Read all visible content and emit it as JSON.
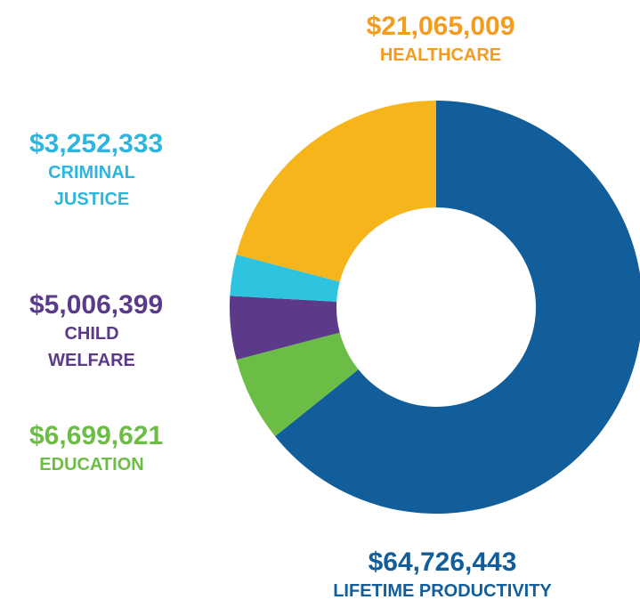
{
  "chart_data": {
    "type": "donut",
    "categories": [
      "LIFETIME PRODUCTIVITY",
      "EDUCATION",
      "CHILD WELFARE",
      "CRIMINAL JUSTICE",
      "HEALTHCARE"
    ],
    "values": [
      64726443,
      6699621,
      5006399,
      3252333,
      21065009
    ],
    "value_labels": [
      "$64,726,443",
      "$6,699,621",
      "$5,006,399",
      "$3,252,333",
      "$21,065,009"
    ],
    "colors": [
      "#125e9b",
      "#6cbd45",
      "#5b3a8a",
      "#2ec4e0",
      "#f6b51b"
    ],
    "label_colors": [
      "#125e9b",
      "#6cbd45",
      "#5b3a8a",
      "#2cb5de",
      "#f39c1f"
    ]
  }
}
